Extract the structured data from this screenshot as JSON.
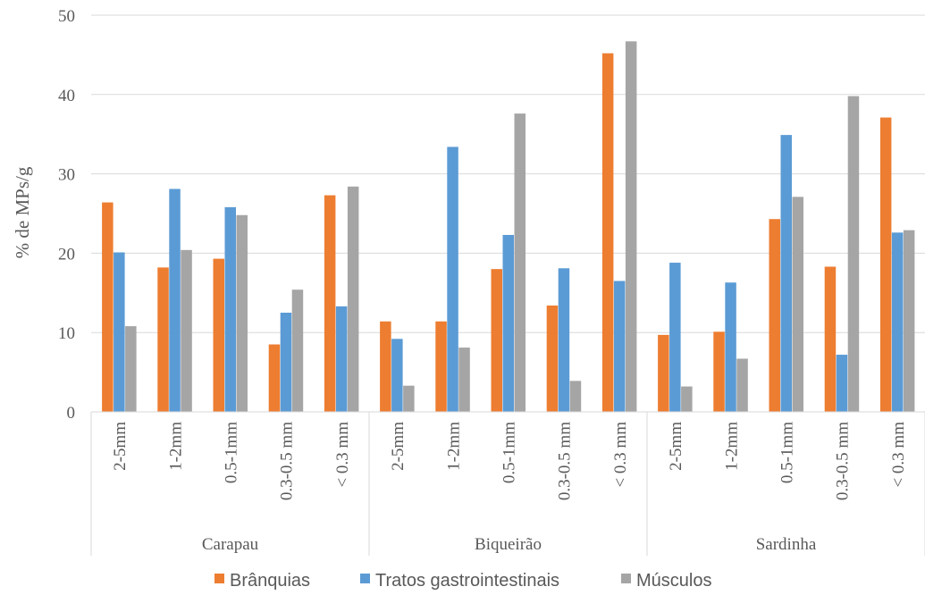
{
  "chart_data": {
    "type": "bar",
    "ylabel": "% de MPs/g",
    "ylim": [
      0,
      50
    ],
    "yticks": [
      0,
      10,
      20,
      30,
      40,
      50
    ],
    "grid": true,
    "legend_position": "bottom",
    "groups": [
      {
        "name": "Carapau",
        "categories": [
          "2-5mm",
          "1-2mm",
          "0.5-1mm",
          "0.3-0.5 mm",
          "< 0.3 mm"
        ]
      },
      {
        "name": "Biqueirão",
        "categories": [
          "2-5mm",
          "1-2mm",
          "0.5-1mm",
          "0.3-0.5 mm",
          "< 0.3 mm"
        ]
      },
      {
        "name": "Sardinha",
        "categories": [
          "2-5mm",
          "1-2mm",
          "0.5-1mm",
          "0.3-0.5 mm",
          "< 0.3 mm"
        ]
      }
    ],
    "series": [
      {
        "name": "Brânquias",
        "color": "#ED7D31",
        "values": [
          26.4,
          18.2,
          19.3,
          8.5,
          27.3,
          11.4,
          11.4,
          18.0,
          13.4,
          45.2,
          9.7,
          10.1,
          24.3,
          18.3,
          37.1
        ]
      },
      {
        "name": "Tratos gastrointestinais",
        "color": "#5B9BD5",
        "values": [
          20.1,
          28.1,
          25.8,
          12.5,
          13.3,
          9.2,
          33.4,
          22.3,
          18.1,
          16.5,
          18.8,
          16.3,
          34.9,
          7.2,
          22.6
        ]
      },
      {
        "name": "Músculos",
        "color": "#A5A5A5",
        "values": [
          10.8,
          20.4,
          24.8,
          15.4,
          28.4,
          3.3,
          8.1,
          37.6,
          3.9,
          46.7,
          3.2,
          6.7,
          27.1,
          39.8,
          22.9
        ]
      }
    ]
  }
}
